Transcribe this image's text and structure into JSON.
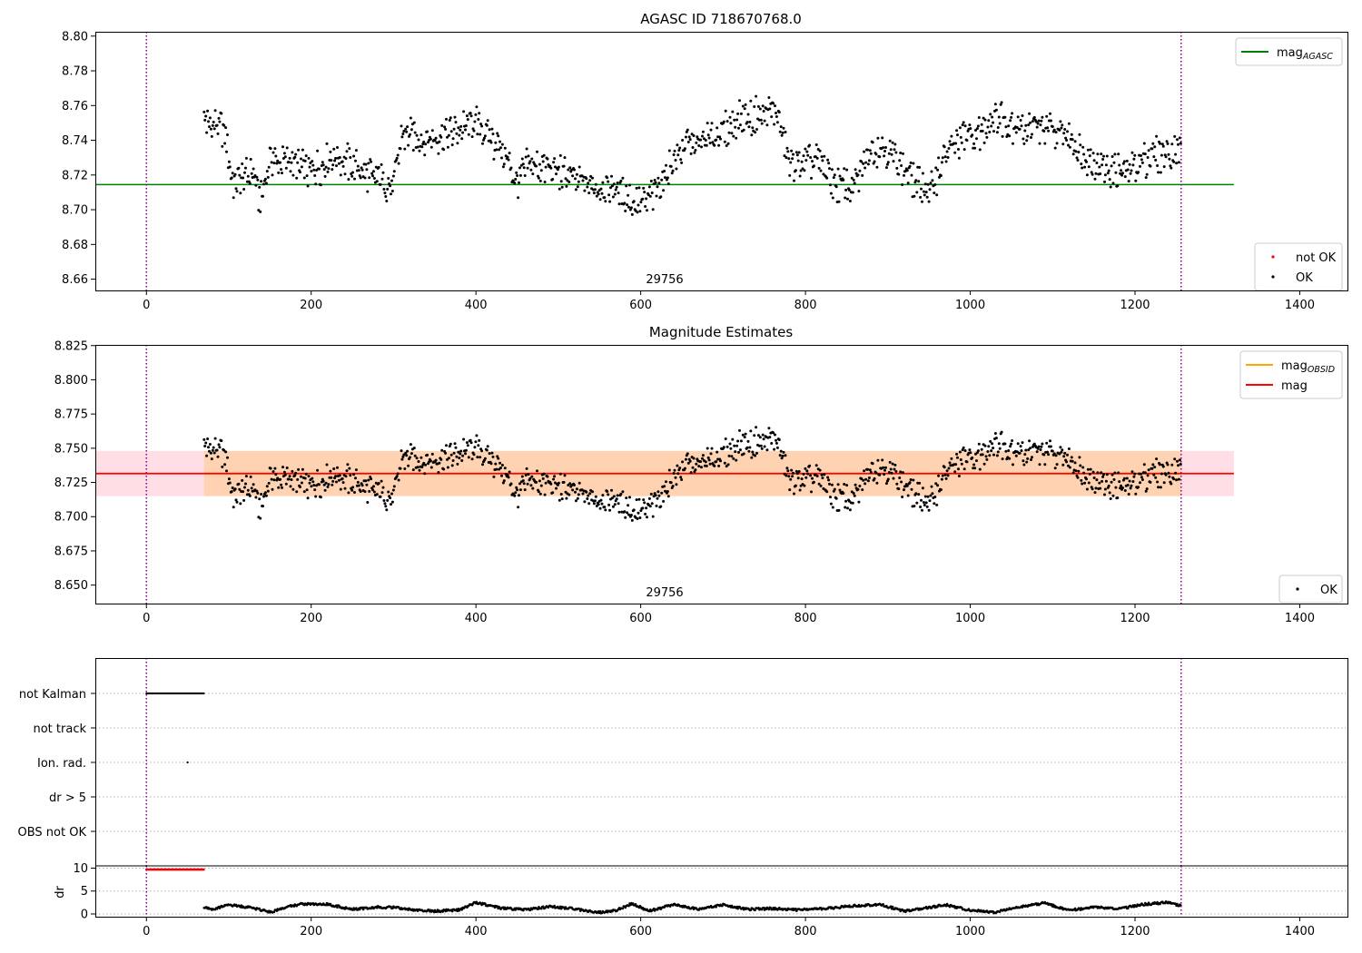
{
  "chart_data": [
    {
      "type": "scatter",
      "title": "AGASC ID 718670768.0",
      "xlim": [
        -62,
        1459
      ],
      "ylim": [
        8.6535,
        8.8025
      ],
      "xticks": [
        "0",
        "200",
        "400",
        "600",
        "800",
        "1000",
        "1200",
        "1400"
      ],
      "yticks": [
        "8.66",
        "8.68",
        "8.70",
        "8.72",
        "8.74",
        "8.76",
        "8.78",
        "8.80"
      ],
      "grid": false,
      "obsid_label": "29756",
      "obs_boundaries": [
        0,
        1256
      ],
      "lines": [
        {
          "name": "mag",
          "name_sub": "AGASC",
          "y": 8.7145,
          "x_range": [
            -62,
            1320
          ],
          "color": "#008000"
        }
      ],
      "legends": [
        {
          "placement": "top-right",
          "entries": [
            {
              "label": "mag",
              "sub": "AGASC",
              "kind": "line",
              "color": "#008000"
            }
          ]
        },
        {
          "placement": "lower-right",
          "entries": [
            {
              "label": "not OK",
              "kind": "marker",
              "color": "#ff0000"
            },
            {
              "label": "OK",
              "kind": "marker",
              "color": "#000000"
            }
          ]
        }
      ],
      "series": [
        {
          "name": "OK",
          "color": "#000000",
          "trend": [
            [
              70,
              8.752
            ],
            [
              95,
              8.745
            ],
            [
              105,
              8.716
            ],
            [
              130,
              8.721
            ],
            [
              138,
              8.705
            ],
            [
              150,
              8.729
            ],
            [
              175,
              8.727
            ],
            [
              200,
              8.721
            ],
            [
              230,
              8.732
            ],
            [
              255,
              8.724
            ],
            [
              285,
              8.717
            ],
            [
              300,
              8.713
            ],
            [
              310,
              8.743
            ],
            [
              340,
              8.741
            ],
            [
              370,
              8.744
            ],
            [
              400,
              8.751
            ],
            [
              430,
              8.735
            ],
            [
              450,
              8.716
            ],
            [
              465,
              8.726
            ],
            [
              500,
              8.722
            ],
            [
              540,
              8.714
            ],
            [
              570,
              8.711
            ],
            [
              600,
              8.703
            ],
            [
              615,
              8.709
            ],
            [
              650,
              8.736
            ],
            [
              690,
              8.742
            ],
            [
              720,
              8.752
            ],
            [
              765,
              8.757
            ],
            [
              780,
              8.725
            ],
            [
              810,
              8.729
            ],
            [
              840,
              8.714
            ],
            [
              860,
              8.712
            ],
            [
              880,
              8.737
            ],
            [
              900,
              8.734
            ],
            [
              930,
              8.718
            ],
            [
              950,
              8.709
            ],
            [
              970,
              8.732
            ],
            [
              990,
              8.741
            ],
            [
              1010,
              8.743
            ],
            [
              1030,
              8.755
            ],
            [
              1060,
              8.747
            ],
            [
              1090,
              8.747
            ],
            [
              1120,
              8.741
            ],
            [
              1150,
              8.727
            ],
            [
              1190,
              8.721
            ],
            [
              1215,
              8.731
            ],
            [
              1255,
              8.735
            ]
          ]
        },
        {
          "name": "not OK",
          "color": "#ff0000",
          "trend": []
        }
      ]
    },
    {
      "type": "scatter",
      "title": "Magnitude Estimates",
      "xlim": [
        -62,
        1459
      ],
      "ylim": [
        8.6365,
        8.8255
      ],
      "xticks": [
        "0",
        "200",
        "400",
        "600",
        "800",
        "1000",
        "1200",
        "1400"
      ],
      "yticks": [
        "8.650",
        "8.675",
        "8.700",
        "8.725",
        "8.750",
        "8.775",
        "8.800",
        "8.825"
      ],
      "grid": false,
      "obsid_label": "29756",
      "obs_boundaries": [
        0,
        1256
      ],
      "lines": [
        {
          "name": "mag",
          "name_sub": "OBSID",
          "y": 8.7315,
          "x_range": [
            70,
            1256
          ],
          "color": "#ffa500"
        },
        {
          "name": "mag",
          "name_sub": "",
          "y": 8.7315,
          "x_range": [
            -62,
            1320
          ],
          "color": "#ff0000"
        }
      ],
      "bands": [
        {
          "y": [
            8.715,
            8.748
          ],
          "x_range": [
            -62,
            1320
          ],
          "color": "#ffc0cb",
          "opacity": 0.5
        },
        {
          "y": [
            8.715,
            8.748
          ],
          "x_range": [
            70,
            1256
          ],
          "color": "#ffa500",
          "opacity": 0.22
        }
      ],
      "legends": [
        {
          "placement": "top-right",
          "entries": [
            {
              "label": "mag",
              "sub": "OBSID",
              "kind": "line",
              "color": "#ffa500"
            },
            {
              "label": "mag",
              "sub": "",
              "kind": "line",
              "color": "#ff0000"
            }
          ]
        },
        {
          "placement": "lower-right",
          "entries": [
            {
              "label": "OK",
              "kind": "marker",
              "color": "#000000"
            }
          ]
        }
      ],
      "series": [
        {
          "name": "OK",
          "color": "#000000",
          "same_as_panel": 0
        }
      ]
    },
    {
      "type": "scatter",
      "title": "",
      "xlim": [
        -62,
        1459
      ],
      "flag_rows": [
        "not Kalman",
        "not track",
        "Ion. rad.",
        "dr > 5",
        "OBS not OK"
      ],
      "flags": [
        {
          "row": "not Kalman",
          "x_range": [
            0,
            70
          ],
          "color": "#000000"
        },
        {
          "row": "Ion. rad.",
          "x": 50,
          "color": "#000000"
        }
      ],
      "obs_boundaries": [
        0,
        1256
      ],
      "grid": true
    },
    {
      "type": "line",
      "title": "",
      "xlim": [
        -62,
        1459
      ],
      "ylim": [
        -0.6,
        10.5
      ],
      "ylabel": "dr",
      "xticks": [
        "0",
        "200",
        "400",
        "600",
        "800",
        "1000",
        "1200",
        "1400"
      ],
      "yticks": [
        "0",
        "5",
        "10"
      ],
      "grid": true,
      "obs_boundaries": [
        0,
        1256
      ],
      "series": [
        {
          "name": "dr > 5",
          "color": "#ff0000",
          "x_range": [
            0,
            70
          ],
          "y": 9.7
        },
        {
          "name": "dr",
          "color": "#000000",
          "trend": [
            [
              70,
              1.5
            ],
            [
              80,
              1.0
            ],
            [
              100,
              2.0
            ],
            [
              130,
              1.3
            ],
            [
              150,
              0.4
            ],
            [
              170,
              1.5
            ],
            [
              190,
              2.2
            ],
            [
              220,
              2.1
            ],
            [
              250,
              1.0
            ],
            [
              280,
              1.5
            ],
            [
              300,
              1.4
            ],
            [
              320,
              1.0
            ],
            [
              350,
              0.6
            ],
            [
              380,
              0.9
            ],
            [
              400,
              2.5
            ],
            [
              430,
              1.3
            ],
            [
              460,
              0.9
            ],
            [
              490,
              1.6
            ],
            [
              520,
              1.1
            ],
            [
              550,
              0.3
            ],
            [
              570,
              0.8
            ],
            [
              590,
              2.3
            ],
            [
              610,
              0.6
            ],
            [
              640,
              2.1
            ],
            [
              670,
              1.0
            ],
            [
              700,
              2.0
            ],
            [
              730,
              1.0
            ],
            [
              760,
              1.2
            ],
            [
              790,
              0.9
            ],
            [
              820,
              1.1
            ],
            [
              860,
              1.8
            ],
            [
              890,
              2.1
            ],
            [
              920,
              0.6
            ],
            [
              950,
              1.4
            ],
            [
              970,
              2.0
            ],
            [
              1000,
              0.8
            ],
            [
              1030,
              0.4
            ],
            [
              1060,
              1.5
            ],
            [
              1090,
              2.4
            ],
            [
              1120,
              0.8
            ],
            [
              1150,
              1.5
            ],
            [
              1180,
              1.1
            ],
            [
              1210,
              2.1
            ],
            [
              1240,
              2.5
            ],
            [
              1256,
              1.8
            ]
          ]
        }
      ]
    }
  ]
}
